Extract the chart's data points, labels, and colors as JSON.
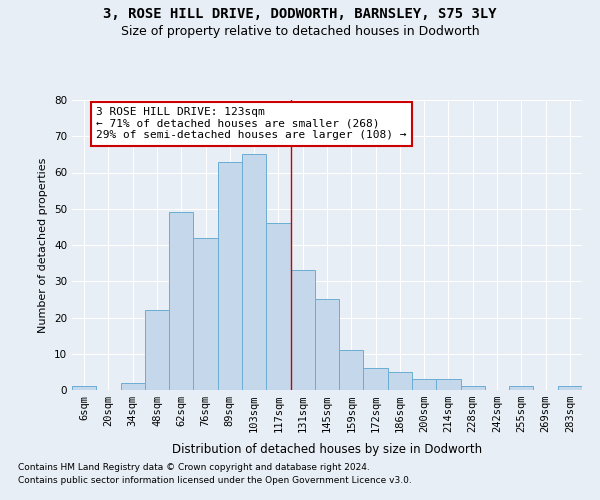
{
  "title1": "3, ROSE HILL DRIVE, DODWORTH, BARNSLEY, S75 3LY",
  "title2": "Size of property relative to detached houses in Dodworth",
  "xlabel": "Distribution of detached houses by size in Dodworth",
  "ylabel": "Number of detached properties",
  "categories": [
    "6sqm",
    "20sqm",
    "34sqm",
    "48sqm",
    "62sqm",
    "76sqm",
    "89sqm",
    "103sqm",
    "117sqm",
    "131sqm",
    "145sqm",
    "159sqm",
    "172sqm",
    "186sqm",
    "200sqm",
    "214sqm",
    "228sqm",
    "242sqm",
    "255sqm",
    "269sqm",
    "283sqm"
  ],
  "values": [
    1,
    0,
    2,
    22,
    49,
    42,
    63,
    65,
    46,
    33,
    25,
    11,
    6,
    5,
    3,
    3,
    1,
    0,
    1,
    0,
    1
  ],
  "bar_color": "#c5d8eb",
  "bar_edge_color": "#6aadd5",
  "bar_width": 1.0,
  "ylim": [
    0,
    80
  ],
  "yticks": [
    0,
    10,
    20,
    30,
    40,
    50,
    60,
    70,
    80
  ],
  "vline_x": 8.5,
  "vline_color": "#cc0000",
  "annotation_text": "3 ROSE HILL DRIVE: 123sqm\n← 71% of detached houses are smaller (268)\n29% of semi-detached houses are larger (108) →",
  "annotation_box_color": "#ffffff",
  "annotation_box_edge_color": "#cc0000",
  "footnote1": "Contains HM Land Registry data © Crown copyright and database right 2024.",
  "footnote2": "Contains public sector information licensed under the Open Government Licence v3.0.",
  "bg_color": "#e8eef5",
  "plot_bg_color": "#e8eef5",
  "title1_fontsize": 10,
  "title2_fontsize": 9,
  "xlabel_fontsize": 8.5,
  "ylabel_fontsize": 8,
  "tick_fontsize": 7.5,
  "annotation_fontsize": 8,
  "footnote_fontsize": 6.5
}
